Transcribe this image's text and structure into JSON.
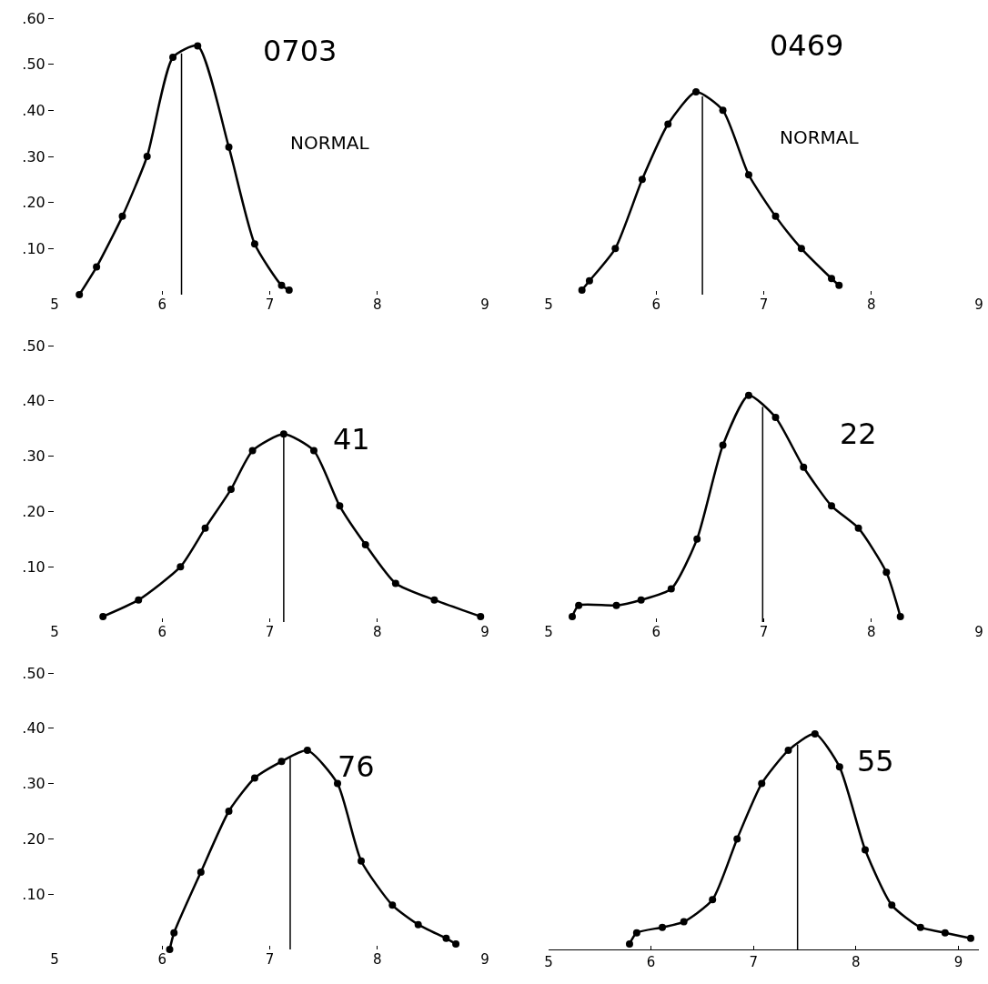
{
  "chart_data": [
    {
      "type": "line",
      "x": [
        5.23,
        5.39,
        5.63,
        5.86,
        6.1,
        6.33,
        6.62,
        6.86,
        7.11,
        7.18
      ],
      "values": [
        0.0,
        0.06,
        0.17,
        0.3,
        0.515,
        0.54,
        0.32,
        0.11,
        0.02,
        0.01
      ],
      "color": "#000000",
      "marker": "circle",
      "line_style": "solid",
      "grid": false,
      "xlim": [
        5,
        9
      ],
      "xticks": [
        5,
        6,
        7,
        8,
        9
      ],
      "ylim": [
        0,
        0.6
      ],
      "yticks": [
        {
          "value": 0.1,
          "label": ".10"
        },
        {
          "value": 0.2,
          "label": ".20"
        },
        {
          "value": 0.3,
          "label": ".30"
        },
        {
          "value": 0.4,
          "label": ".40"
        },
        {
          "value": 0.5,
          "label": ".50"
        },
        {
          "value": 0.6,
          "label": ".60"
        }
      ],
      "ref_lines": [
        {
          "axis": "x",
          "value": 6.18
        }
      ],
      "annotations": [
        "0703",
        "NORMAL"
      ]
    },
    {
      "type": "line",
      "x": [
        5.31,
        5.38,
        5.62,
        5.87,
        6.11,
        6.37,
        6.62,
        6.86,
        7.11,
        7.35,
        7.63,
        7.7
      ],
      "values": [
        0.01,
        0.03,
        0.1,
        0.25,
        0.37,
        0.44,
        0.4,
        0.26,
        0.17,
        0.1,
        0.035,
        0.02
      ],
      "color": "#000000",
      "marker": "circle",
      "line_style": "solid",
      "grid": false,
      "xlim": [
        5,
        9
      ],
      "xticks": [
        5,
        6,
        7,
        8,
        9
      ],
      "ylim": [
        0,
        0.6
      ],
      "tick_labels": "x",
      "ref_lines": [
        {
          "axis": "x",
          "value": 6.43
        }
      ],
      "annotations": [
        "0469",
        "NORMAL"
      ]
    },
    {
      "type": "line",
      "x": [
        5.45,
        5.78,
        6.17,
        6.4,
        6.64,
        6.84,
        7.13,
        7.41,
        7.65,
        7.89,
        8.17,
        8.53,
        8.96
      ],
      "values": [
        0.01,
        0.04,
        0.1,
        0.17,
        0.24,
        0.31,
        0.34,
        0.31,
        0.21,
        0.14,
        0.07,
        0.04,
        0.01
      ],
      "color": "#000000",
      "marker": "circle",
      "line_style": "solid",
      "grid": false,
      "xlim": [
        5,
        9
      ],
      "xticks": [
        5,
        6,
        7,
        8,
        9
      ],
      "ylim": [
        0,
        0.5
      ],
      "yticks": [
        {
          "value": 0.1,
          "label": ".10"
        },
        {
          "value": 0.2,
          "label": ".20"
        },
        {
          "value": 0.3,
          "label": ".30"
        },
        {
          "value": 0.4,
          "label": ".40"
        },
        {
          "value": 0.5,
          "label": ".50"
        }
      ],
      "ref_lines": [
        {
          "axis": "x",
          "value": 7.13
        }
      ],
      "annotations": [
        "41"
      ]
    },
    {
      "type": "line",
      "x": [
        5.22,
        5.28,
        5.63,
        5.86,
        6.14,
        6.38,
        6.62,
        6.86,
        7.11,
        7.37,
        7.63,
        7.88,
        8.14,
        8.27
      ],
      "values": [
        0.01,
        0.03,
        0.03,
        0.04,
        0.06,
        0.15,
        0.32,
        0.41,
        0.37,
        0.28,
        0.21,
        0.17,
        0.09,
        0.01
      ],
      "color": "#000000",
      "marker": "circle",
      "line_style": "solid",
      "grid": false,
      "xlim": [
        5,
        9
      ],
      "xticks": [
        5,
        6,
        7,
        8,
        9
      ],
      "ylim": [
        0,
        0.5
      ],
      "tick_labels": "x",
      "ref_lines": [
        {
          "axis": "x",
          "value": 6.99
        }
      ],
      "annotations": [
        "22"
      ]
    },
    {
      "type": "line",
      "x": [
        6.07,
        6.11,
        6.36,
        6.62,
        6.86,
        7.11,
        7.35,
        7.63,
        7.85,
        8.14,
        8.38,
        8.64,
        8.73
      ],
      "values": [
        0.0,
        0.03,
        0.14,
        0.25,
        0.31,
        0.34,
        0.36,
        0.3,
        0.16,
        0.08,
        0.045,
        0.02,
        0.01
      ],
      "color": "#000000",
      "marker": "circle",
      "line_style": "solid",
      "grid": false,
      "xlim": [
        5,
        9
      ],
      "xticks": [
        5,
        6,
        7,
        8,
        9
      ],
      "ylim": [
        0,
        0.5
      ],
      "yticks": [
        {
          "value": 0.1,
          "label": ".10"
        },
        {
          "value": 0.2,
          "label": ".20"
        },
        {
          "value": 0.3,
          "label": ".30"
        },
        {
          "value": 0.4,
          "label": ".40"
        },
        {
          "value": 0.5,
          "label": ".50"
        }
      ],
      "ref_lines": [
        {
          "axis": "x",
          "value": 7.19
        }
      ],
      "annotations": [
        "76"
      ]
    },
    {
      "type": "line",
      "x": [
        5.79,
        5.86,
        6.11,
        6.32,
        6.6,
        6.84,
        7.08,
        7.34,
        7.6,
        7.84,
        8.09,
        8.35,
        8.63,
        8.87,
        9.12
      ],
      "values": [
        0.01,
        0.03,
        0.04,
        0.05,
        0.09,
        0.2,
        0.3,
        0.36,
        0.39,
        0.33,
        0.18,
        0.08,
        0.04,
        0.03,
        0.02
      ],
      "color": "#000000",
      "marker": "circle",
      "line_style": "solid",
      "grid": false,
      "xlim": [
        5,
        9.2
      ],
      "xticks": [
        5,
        6,
        7,
        8,
        9
      ],
      "ylim": [
        0,
        0.5
      ],
      "tick_labels": "x",
      "ref_lines": [
        {
          "axis": "x",
          "value": 7.43
        }
      ],
      "annotations": [
        "55"
      ]
    }
  ]
}
